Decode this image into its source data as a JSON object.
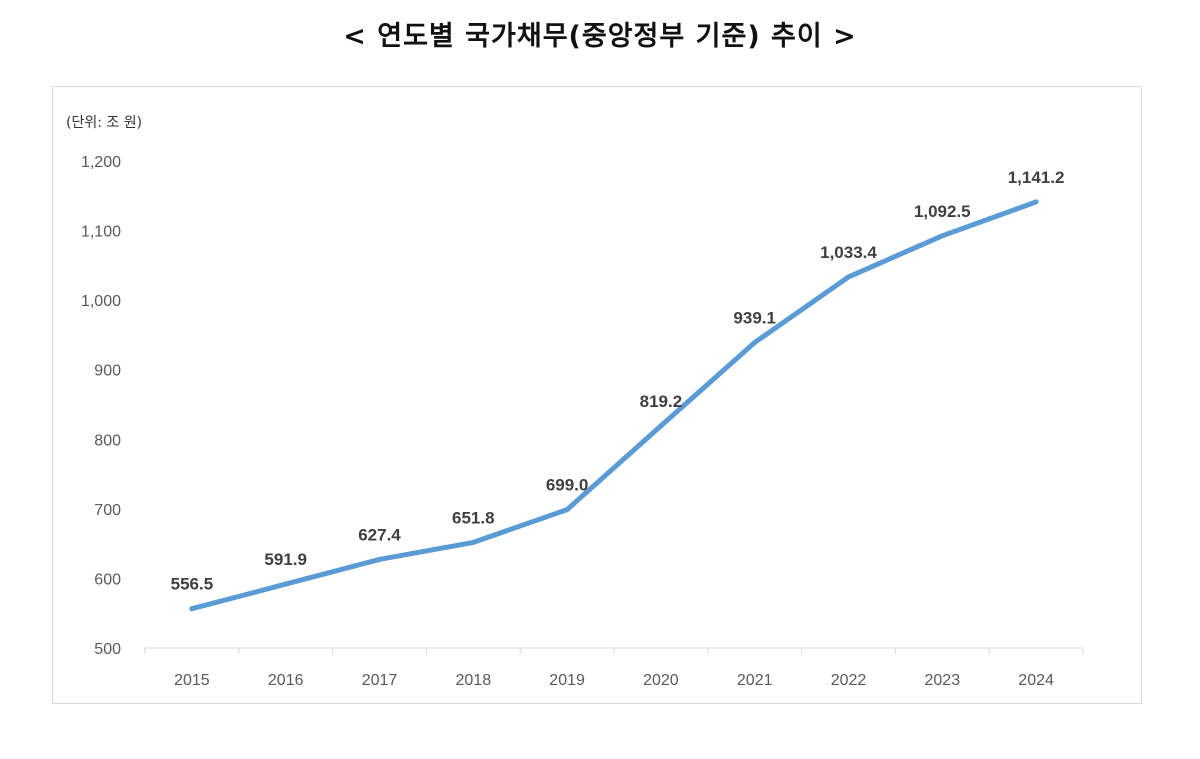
{
  "title": "< 연도별 국가채무(중앙정부 기준) 추이 >",
  "chart_data": {
    "type": "line",
    "unit_label": "(단위: 조 원)",
    "categories": [
      "2015",
      "2016",
      "2017",
      "2018",
      "2019",
      "2020",
      "2021",
      "2022",
      "2023",
      "2024"
    ],
    "values": [
      556.5,
      591.9,
      627.4,
      651.8,
      699.0,
      819.2,
      939.1,
      1033.4,
      1092.5,
      1141.2
    ],
    "data_labels": [
      "556.5",
      "591.9",
      "627.4",
      "651.8",
      "699.0",
      "819.2",
      "939.1",
      "1,033.4",
      "1,092.5",
      "1,141.2"
    ],
    "yticks": [
      "500",
      "600",
      "700",
      "800",
      "900",
      "1,000",
      "1,100",
      "1,200"
    ],
    "ytick_values": [
      500,
      600,
      700,
      800,
      900,
      1000,
      1100,
      1200
    ],
    "ylim": [
      500,
      1200
    ],
    "grid": false,
    "line_color": "#5b9bd5",
    "axis_color": "#d9d9d9",
    "label_color": "#404040",
    "tick_color": "#595959"
  }
}
